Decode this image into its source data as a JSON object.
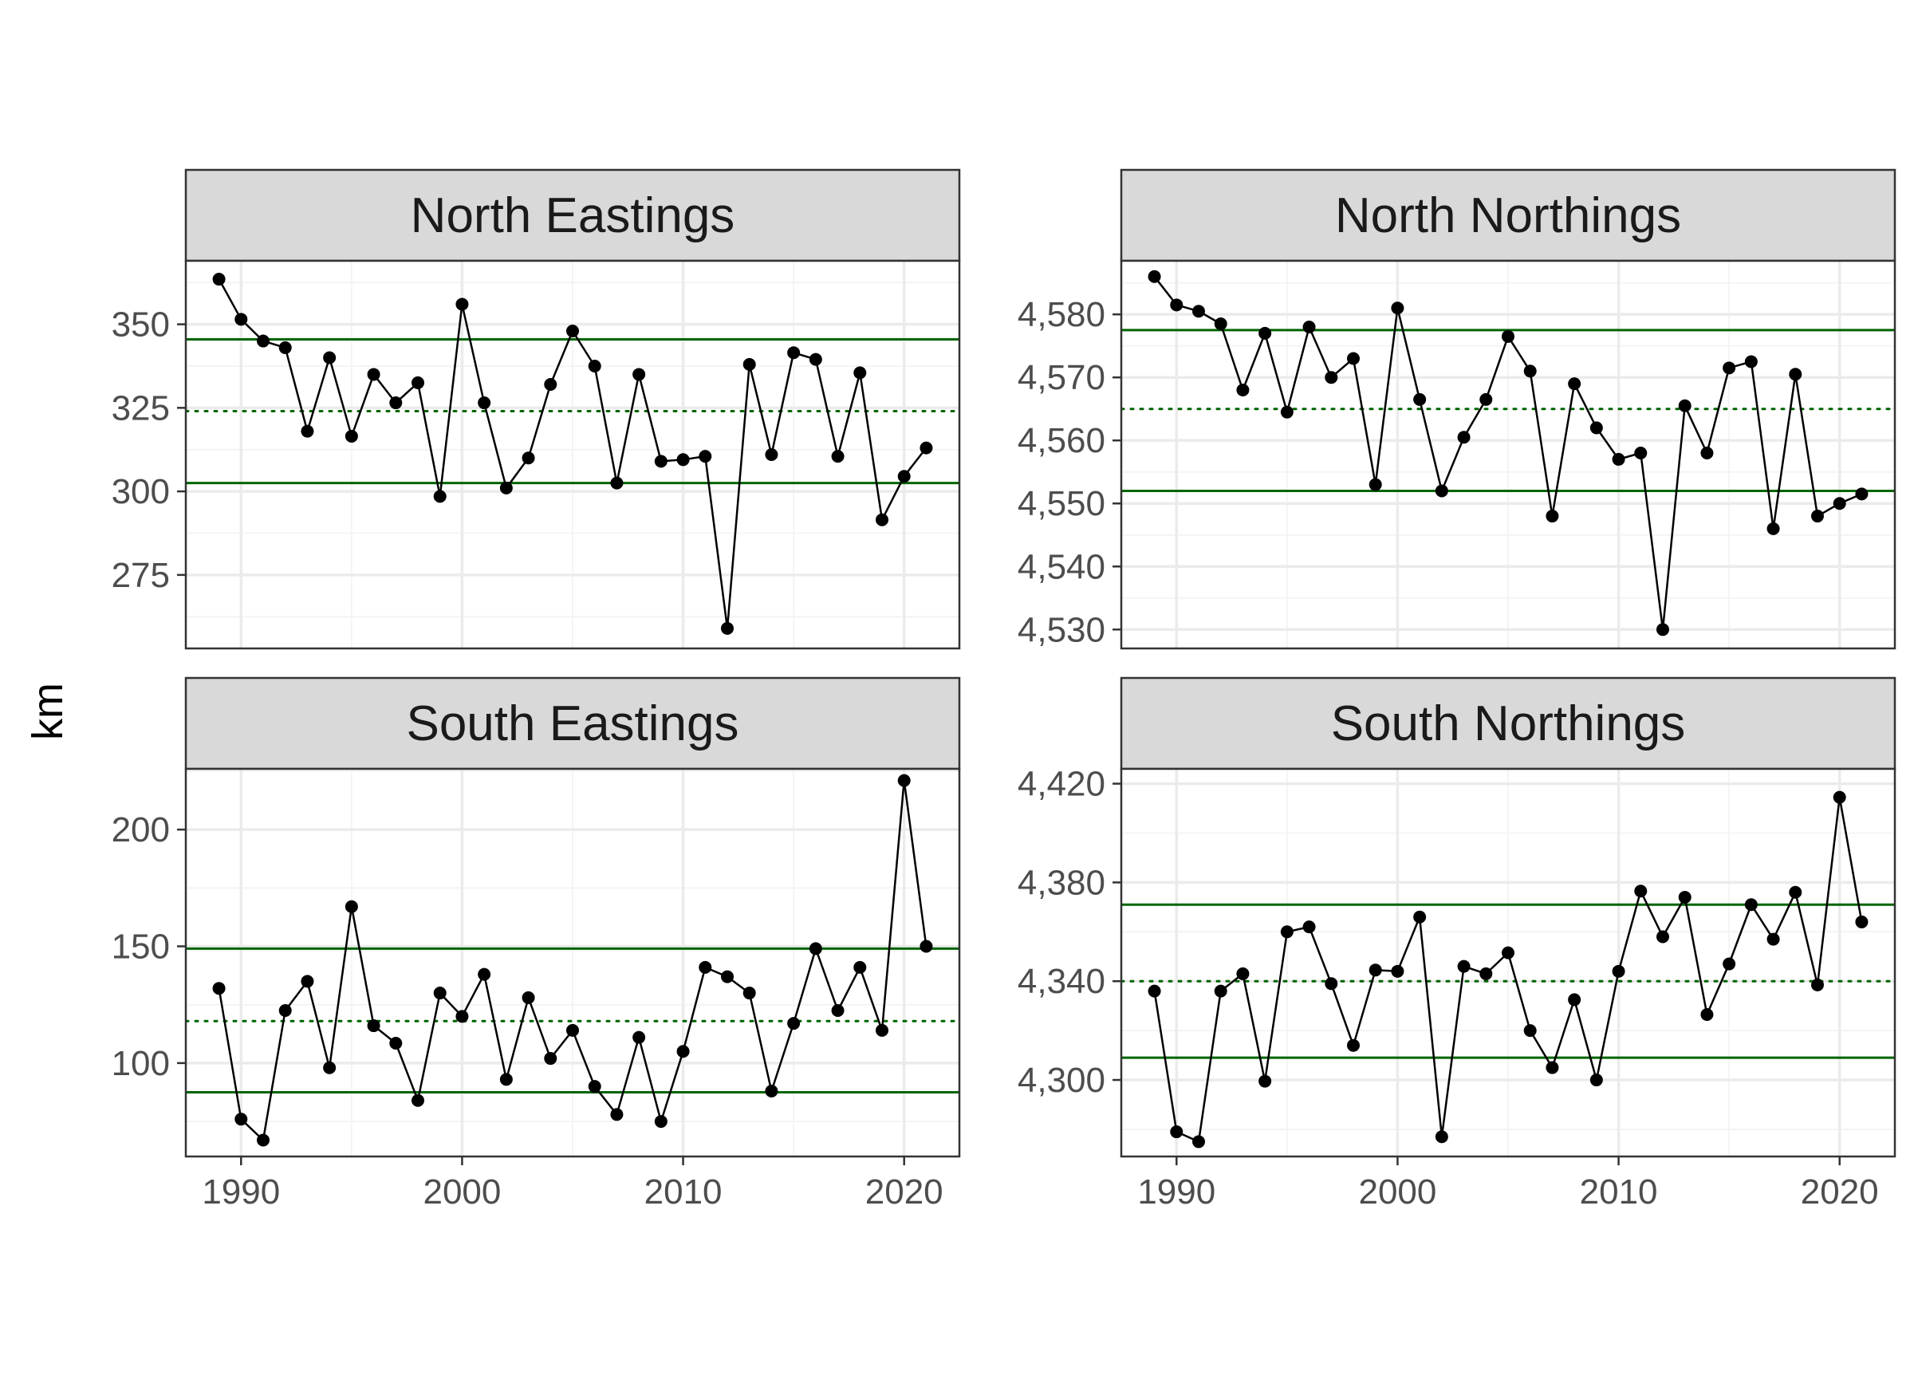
{
  "colors": {
    "background": "#ffffff",
    "panel_border": "#333333",
    "strip_fill": "#d9d9d9",
    "grid_major": "#ebebeb",
    "grid_minor": "#f4f4f4",
    "series": "#000000",
    "limit_lines": "#006400"
  },
  "chart_data": {
    "type": "line",
    "ylabel": "km",
    "xlabel": "",
    "x_ticks": [
      1990,
      2000,
      2010,
      2020
    ],
    "x_tick_labels": [
      "1990",
      "2000",
      "2010",
      "2020"
    ],
    "xlim": [
      1987.5,
      2022.5
    ],
    "x": [
      1989,
      1990,
      1991,
      1992,
      1993,
      1994,
      1995,
      1996,
      1997,
      1998,
      1999,
      2000,
      2001,
      2002,
      2003,
      2004,
      2005,
      2006,
      2007,
      2008,
      2009,
      2010,
      2011,
      2012,
      2013,
      2014,
      2015,
      2016,
      2017,
      2018,
      2019,
      2020,
      2021
    ],
    "panels": [
      {
        "title": "North Eastings",
        "ylim": [
          253,
          369
        ],
        "y_ticks": [
          275,
          300,
          325,
          350
        ],
        "y_tick_labels": [
          "275",
          "300",
          "325",
          "350"
        ],
        "mean": 324,
        "upper": 345.5,
        "lower": 302.5,
        "values": [
          363.5,
          351.5,
          345,
          343,
          318,
          340,
          316.5,
          335,
          326.5,
          332.5,
          298.5,
          356,
          326.5,
          301,
          310,
          332,
          348,
          337.5,
          302.5,
          335,
          309,
          309.5,
          310.5,
          259,
          338,
          311,
          341.5,
          339.5,
          310.5,
          335.5,
          291.5,
          304.5,
          313
        ]
      },
      {
        "title": "North Northings",
        "ylim": [
          4527,
          4588.5
        ],
        "y_ticks": [
          4530,
          4540,
          4550,
          4560,
          4570,
          4580
        ],
        "y_tick_labels": [
          "4,530",
          "4,540",
          "4,550",
          "4,560",
          "4,570",
          "4,580"
        ],
        "mean": 4565,
        "upper": 4577.5,
        "lower": 4552,
        "values": [
          4586,
          4581.5,
          4580.5,
          4578.5,
          4568,
          4577,
          4564.5,
          4578,
          4570,
          4573,
          4553,
          4581,
          4566.5,
          4552,
          4560.5,
          4566.5,
          4576.5,
          4571,
          4548,
          4569,
          4562,
          4557,
          4558,
          4530,
          4565.5,
          4558,
          4571.5,
          4572.5,
          4546,
          4570.5,
          4548,
          4550,
          4551.5
        ]
      },
      {
        "title": "South Eastings",
        "ylim": [
          60,
          226
        ],
        "y_ticks": [
          100,
          150,
          200
        ],
        "y_tick_labels": [
          "100",
          "150",
          "200"
        ],
        "mean": 118,
        "upper": 149,
        "lower": 87.5,
        "values": [
          132,
          76,
          67,
          122.5,
          135,
          98,
          167,
          116,
          108.5,
          84,
          130,
          120,
          138,
          93,
          128,
          102,
          114,
          90,
          78,
          111,
          75,
          105,
          141,
          137,
          130,
          88,
          117,
          149,
          122.5,
          141,
          114,
          221,
          150
        ]
      },
      {
        "title": "South Northings",
        "ylim": [
          4269,
          4426
        ],
        "y_ticks": [
          4300,
          4340,
          4380,
          4420
        ],
        "y_tick_labels": [
          "4,300",
          "4,340",
          "4,380",
          "4,420"
        ],
        "mean": 4340,
        "upper": 4371,
        "lower": 4309,
        "values": [
          4336,
          4279,
          4275,
          4336,
          4343,
          4299.5,
          4360,
          4362,
          4339,
          4314,
          4344.5,
          4344,
          4366,
          4277,
          4346,
          4343,
          4351.5,
          4320,
          4305,
          4332.5,
          4300,
          4344,
          4376.5,
          4358,
          4374,
          4326.5,
          4347,
          4371,
          4357,
          4376,
          4338.5,
          4414.5,
          4364
        ]
      }
    ]
  }
}
